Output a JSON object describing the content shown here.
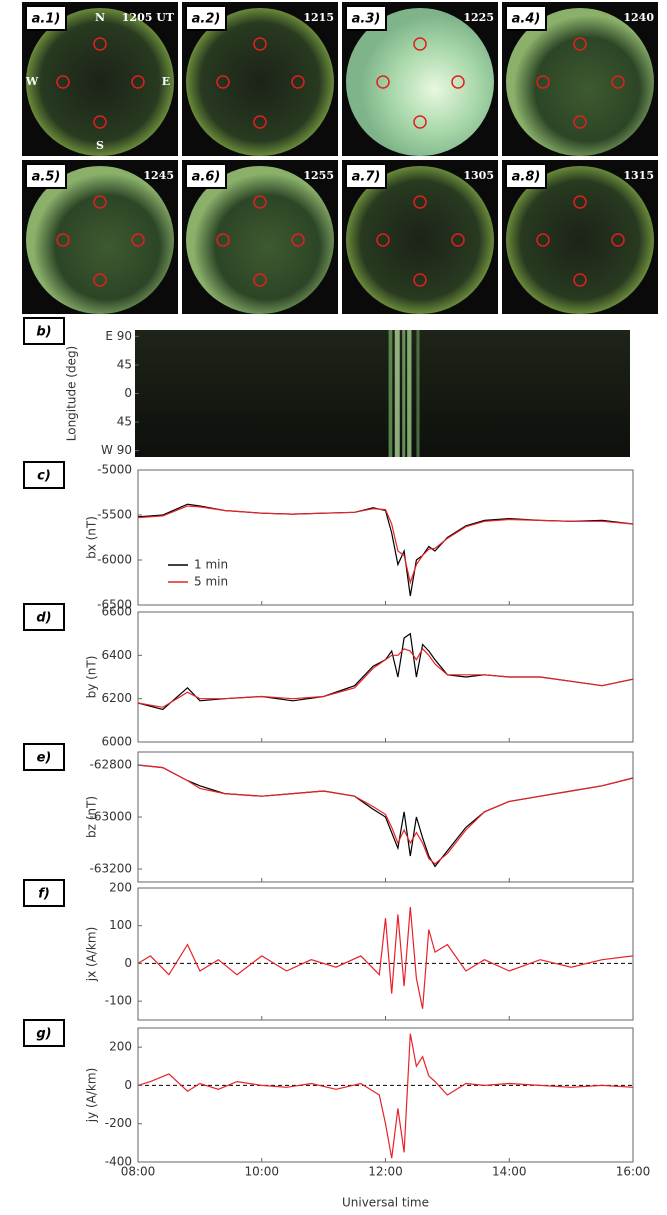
{
  "sky_images": [
    {
      "label": "a.1)",
      "time": "1205 UT"
    },
    {
      "label": "a.2)",
      "time": "1215"
    },
    {
      "label": "a.3)",
      "time": "1225"
    },
    {
      "label": "a.4)",
      "time": "1240"
    },
    {
      "label": "a.5)",
      "time": "1245"
    },
    {
      "label": "a.6)",
      "time": "1255"
    },
    {
      "label": "a.7)",
      "time": "1305"
    },
    {
      "label": "a.8)",
      "time": "1315"
    }
  ],
  "compass": [
    "N",
    "W",
    "E",
    "S"
  ],
  "x_axis": {
    "xlim": [
      8,
      16
    ],
    "xticks": [
      {
        "value": 8,
        "label": "08:00"
      },
      {
        "value": 10,
        "label": "10:00"
      },
      {
        "value": 12,
        "label": "12:00"
      },
      {
        "value": 14,
        "label": "14:00"
      },
      {
        "value": 16,
        "label": "16:00"
      }
    ],
    "xlabel": "Universal time"
  },
  "chart_data": [
    {
      "type": "keogram",
      "panel": "b)",
      "ylabel": "Longitude (deg)",
      "ylim": [
        -100,
        100
      ],
      "yticks": [
        {
          "value": 90,
          "label": "E 90"
        },
        45,
        0,
        {
          "value": -45,
          "label": "45"
        },
        {
          "value": -90,
          "label": "W 90"
        }
      ]
    },
    {
      "type": "line",
      "panel": "c)",
      "ylabel": "bx (nT)",
      "ylim": [
        -6500,
        -5000
      ],
      "yticks": [
        -5000,
        -5500,
        -6000,
        -6500
      ],
      "x": [
        8.0,
        8.4,
        8.8,
        9.0,
        9.4,
        10,
        10.5,
        11,
        11.5,
        11.8,
        12.0,
        12.1,
        12.2,
        12.3,
        12.4,
        12.5,
        12.6,
        12.7,
        12.8,
        13.0,
        13.3,
        13.6,
        14,
        14.5,
        15,
        15.5,
        16.0
      ],
      "series": [
        {
          "name": "1 min",
          "color": "#000000",
          "values": [
            -5520,
            -5500,
            -5380,
            -5400,
            -5450,
            -5480,
            -5490,
            -5480,
            -5470,
            -5420,
            -5450,
            -5700,
            -6050,
            -5900,
            -6400,
            -6000,
            -5950,
            -5850,
            -5900,
            -5750,
            -5620,
            -5560,
            -5540,
            -5560,
            -5570,
            -5560,
            -5600
          ]
        },
        {
          "name": "5 min",
          "color": "#e8212a",
          "values": [
            -5530,
            -5510,
            -5400,
            -5410,
            -5450,
            -5480,
            -5490,
            -5480,
            -5470,
            -5430,
            -5440,
            -5600,
            -5900,
            -5950,
            -6250,
            -6050,
            -5950,
            -5880,
            -5870,
            -5760,
            -5630,
            -5570,
            -5550,
            -5560,
            -5570,
            -5570,
            -5600
          ]
        }
      ],
      "legend": true
    },
    {
      "type": "line",
      "panel": "d)",
      "ylabel": "by (nT)",
      "ylim": [
        6000,
        6600
      ],
      "yticks": [
        6000,
        6200,
        6400,
        6600
      ],
      "x": [
        8.0,
        8.4,
        8.8,
        9.0,
        9.4,
        10,
        10.5,
        11,
        11.5,
        11.8,
        12.0,
        12.1,
        12.2,
        12.3,
        12.4,
        12.5,
        12.6,
        12.7,
        12.8,
        13.0,
        13.3,
        13.6,
        14,
        14.5,
        15,
        15.5,
        16.0
      ],
      "series": [
        {
          "name": "1 min",
          "color": "#000000",
          "values": [
            6180,
            6150,
            6250,
            6190,
            6200,
            6210,
            6190,
            6210,
            6260,
            6350,
            6380,
            6420,
            6300,
            6480,
            6500,
            6300,
            6450,
            6420,
            6380,
            6310,
            6300,
            6310,
            6300,
            6300,
            6280,
            6260,
            6290
          ]
        },
        {
          "name": "5 min",
          "color": "#e8212a",
          "values": [
            6180,
            6160,
            6230,
            6200,
            6200,
            6210,
            6200,
            6210,
            6250,
            6340,
            6380,
            6400,
            6400,
            6430,
            6420,
            6380,
            6430,
            6400,
            6360,
            6310,
            6310,
            6310,
            6300,
            6300,
            6280,
            6260,
            6290
          ]
        }
      ],
      "legend": false
    },
    {
      "type": "line",
      "panel": "e)",
      "ylabel": "bz (nT)",
      "ylim": [
        -63250,
        -62750
      ],
      "yticks": [
        -62800,
        -63000,
        -63200
      ],
      "x": [
        8.0,
        8.4,
        8.8,
        9.0,
        9.4,
        10,
        10.5,
        11,
        11.5,
        11.8,
        12.0,
        12.1,
        12.2,
        12.3,
        12.4,
        12.5,
        12.6,
        12.7,
        12.8,
        13.0,
        13.3,
        13.6,
        14,
        14.5,
        15,
        15.5,
        16.0
      ],
      "series": [
        {
          "name": "1 min",
          "color": "#000000",
          "values": [
            -62800,
            -62810,
            -62860,
            -62880,
            -62910,
            -62920,
            -62910,
            -62900,
            -62920,
            -62970,
            -63000,
            -63060,
            -63120,
            -62980,
            -63150,
            -63000,
            -63080,
            -63150,
            -63190,
            -63130,
            -63040,
            -62980,
            -62940,
            -62920,
            -62900,
            -62880,
            -62850
          ]
        },
        {
          "name": "5 min",
          "color": "#e8212a",
          "values": [
            -62800,
            -62810,
            -62860,
            -62890,
            -62910,
            -62920,
            -62910,
            -62900,
            -62920,
            -62960,
            -62990,
            -63040,
            -63100,
            -63050,
            -63100,
            -63060,
            -63100,
            -63160,
            -63180,
            -63140,
            -63050,
            -62980,
            -62940,
            -62920,
            -62900,
            -62880,
            -62850
          ]
        }
      ],
      "legend": false
    },
    {
      "type": "line",
      "panel": "f)",
      "ylabel": "jx (A/km)",
      "ylim": [
        -150,
        200
      ],
      "yticks": [
        200,
        100,
        0,
        -100
      ],
      "reference_line": 0,
      "x": [
        8.0,
        8.2,
        8.5,
        8.8,
        9.0,
        9.3,
        9.6,
        10.0,
        10.4,
        10.8,
        11.2,
        11.6,
        11.9,
        12.0,
        12.1,
        12.2,
        12.3,
        12.4,
        12.5,
        12.6,
        12.7,
        12.8,
        13.0,
        13.3,
        13.6,
        14.0,
        14.5,
        15.0,
        15.5,
        16.0
      ],
      "series": [
        {
          "name": null,
          "color": "#e8212a",
          "values": [
            0,
            20,
            -30,
            50,
            -20,
            10,
            -30,
            20,
            -20,
            10,
            -10,
            20,
            -30,
            120,
            -80,
            130,
            -60,
            150,
            -40,
            -120,
            90,
            30,
            50,
            -20,
            10,
            -20,
            10,
            -10,
            10,
            20
          ]
        }
      ],
      "legend": false
    },
    {
      "type": "line",
      "panel": "g)",
      "ylabel": "jy (A/km)",
      "ylim": [
        -400,
        300
      ],
      "yticks": [
        200,
        0,
        -200,
        -400
      ],
      "reference_line": 0,
      "x": [
        8.0,
        8.2,
        8.5,
        8.8,
        9.0,
        9.3,
        9.6,
        10.0,
        10.4,
        10.8,
        11.2,
        11.6,
        11.9,
        12.0,
        12.1,
        12.2,
        12.3,
        12.4,
        12.5,
        12.6,
        12.7,
        12.8,
        13.0,
        13.3,
        13.6,
        14.0,
        14.5,
        15.0,
        15.5,
        16.0
      ],
      "series": [
        {
          "name": null,
          "color": "#e8212a",
          "values": [
            0,
            20,
            60,
            -30,
            10,
            -20,
            20,
            0,
            -10,
            10,
            -20,
            10,
            -50,
            -200,
            -380,
            -120,
            -350,
            270,
            100,
            150,
            50,
            20,
            -50,
            10,
            0,
            10,
            0,
            -10,
            0,
            -10
          ]
        }
      ],
      "legend": false
    }
  ]
}
